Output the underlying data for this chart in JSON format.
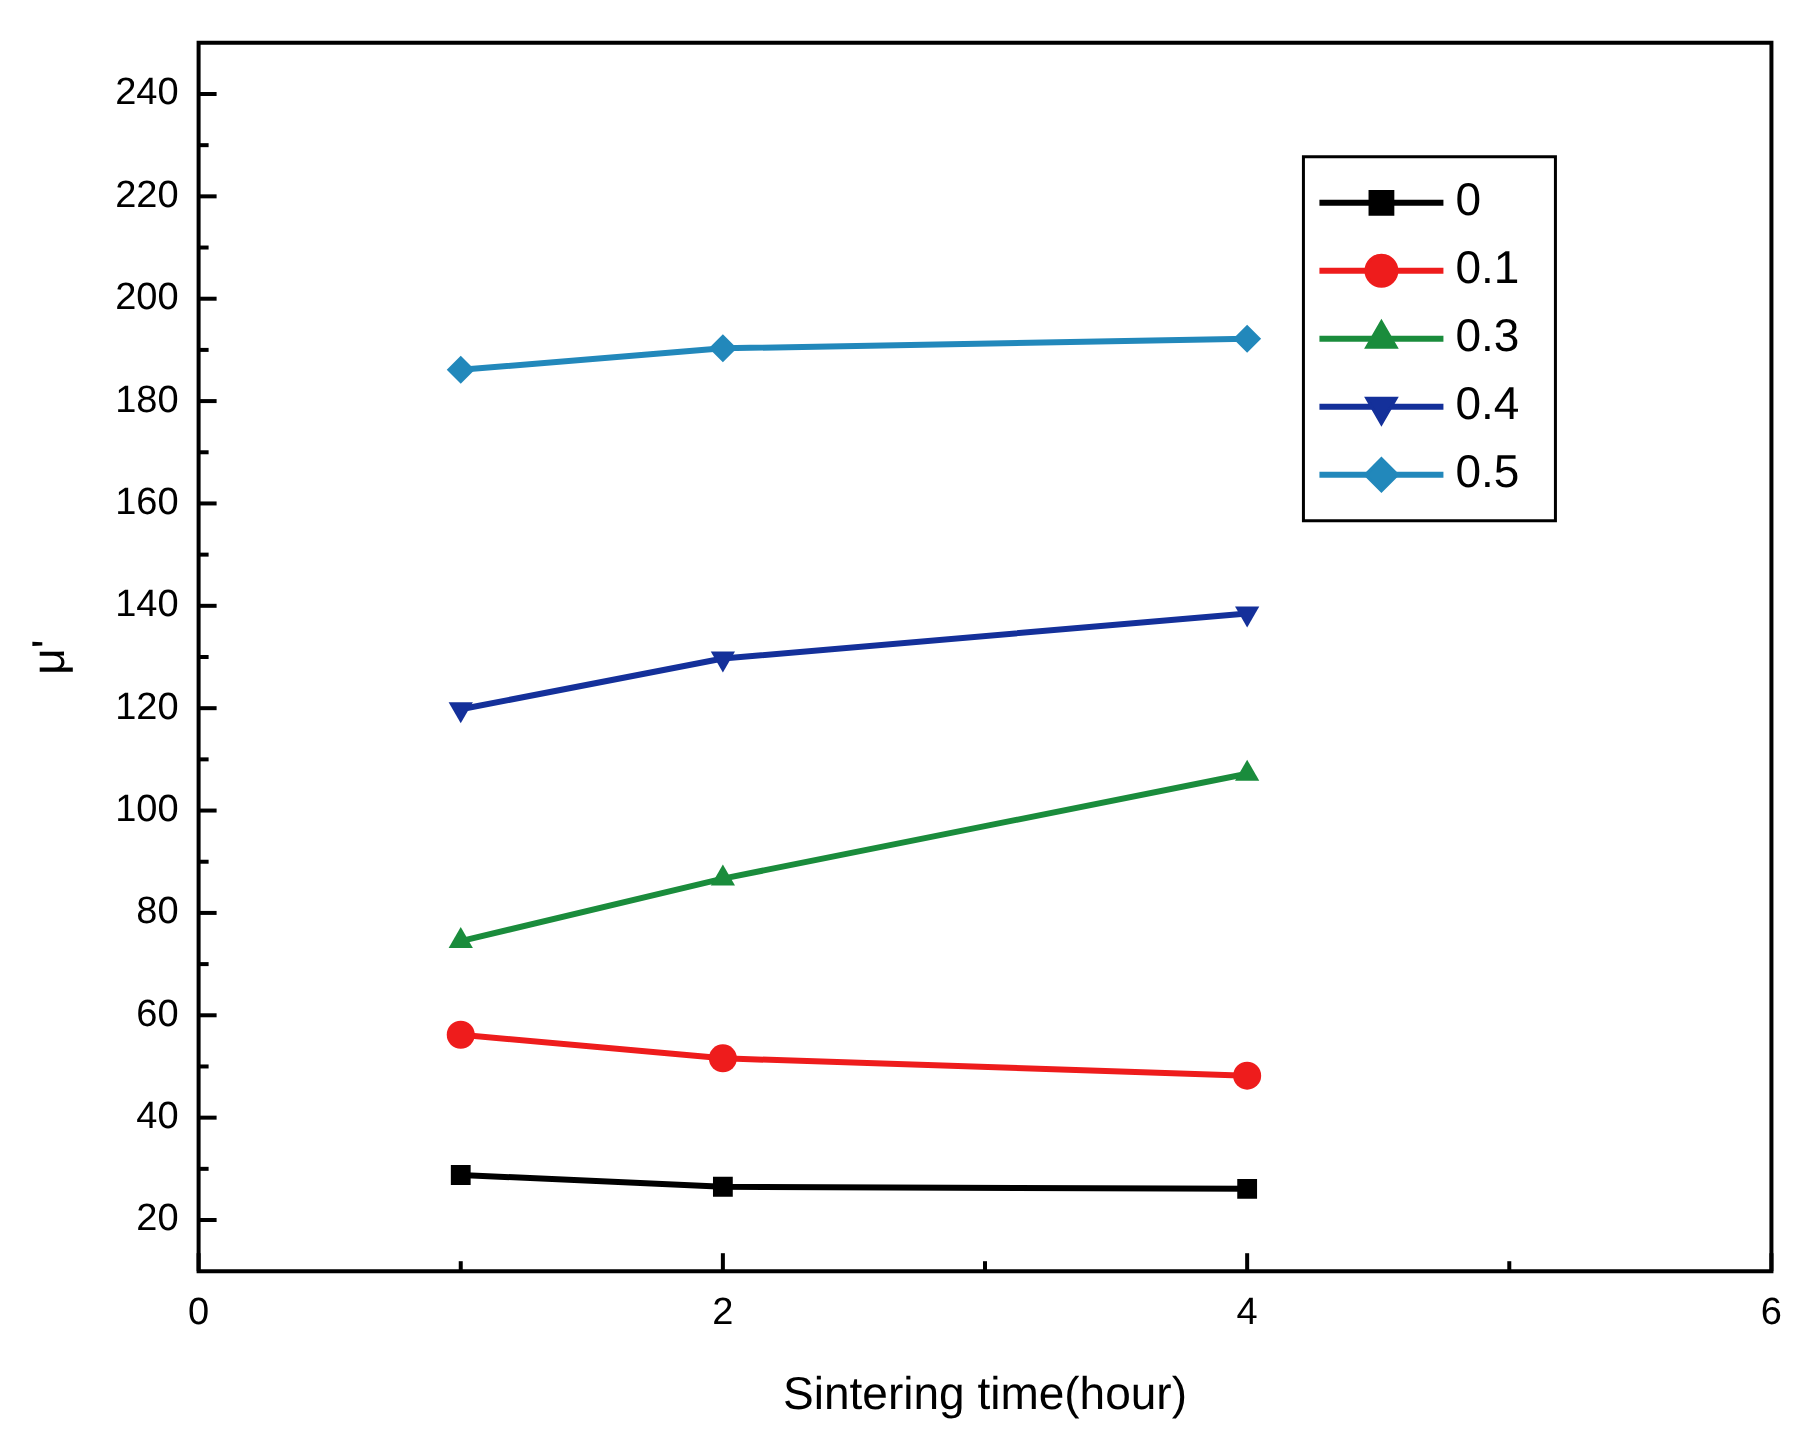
{
  "chart_data": {
    "type": "line",
    "xlabel": "Sintering time(hour)",
    "ylabel": "μ'",
    "xlim": [
      0,
      6
    ],
    "xticks": [
      0,
      {
        "value": 1,
        "label": null
      },
      2,
      {
        "value": 3,
        "label": null
      },
      4,
      {
        "value": 5,
        "label": null
      },
      6
    ],
    "ylim": [
      10,
      250
    ],
    "yticks": [
      20,
      {
        "value": 30,
        "label": null
      },
      40,
      {
        "value": 50,
        "label": null
      },
      60,
      {
        "value": 70,
        "label": null
      },
      80,
      {
        "value": 90,
        "label": null
      },
      100,
      {
        "value": 110,
        "label": null
      },
      120,
      {
        "value": 130,
        "label": null
      },
      140,
      {
        "value": 150,
        "label": null
      },
      160,
      {
        "value": 170,
        "label": null
      },
      180,
      {
        "value": 190,
        "label": null
      },
      200,
      {
        "value": 210,
        "label": null
      },
      220,
      {
        "value": 230,
        "label": null
      },
      240
    ],
    "x": [
      1,
      2,
      4
    ],
    "grid": false,
    "legend": "top right",
    "line_style": "solid",
    "series": [
      {
        "name": "0",
        "color": "#000000",
        "marker": "square",
        "values": [
          28.8,
          26.5,
          26.1
        ]
      },
      {
        "name": "0.1",
        "color": "#ee1c1c",
        "marker": "circle",
        "values": [
          56.2,
          51.6,
          48.2
        ]
      },
      {
        "name": "0.3",
        "color": "#1a8c3c",
        "marker": "triangle",
        "values": [
          74.5,
          86.7,
          107.2
        ]
      },
      {
        "name": "0.4",
        "color": "#14309a",
        "marker": "triangle-down",
        "values": [
          119.8,
          129.7,
          138.5
        ]
      },
      {
        "name": "0.5",
        "color": "#2288bb",
        "marker": "diamond",
        "values": [
          186.1,
          190.3,
          192.2
        ]
      }
    ]
  }
}
